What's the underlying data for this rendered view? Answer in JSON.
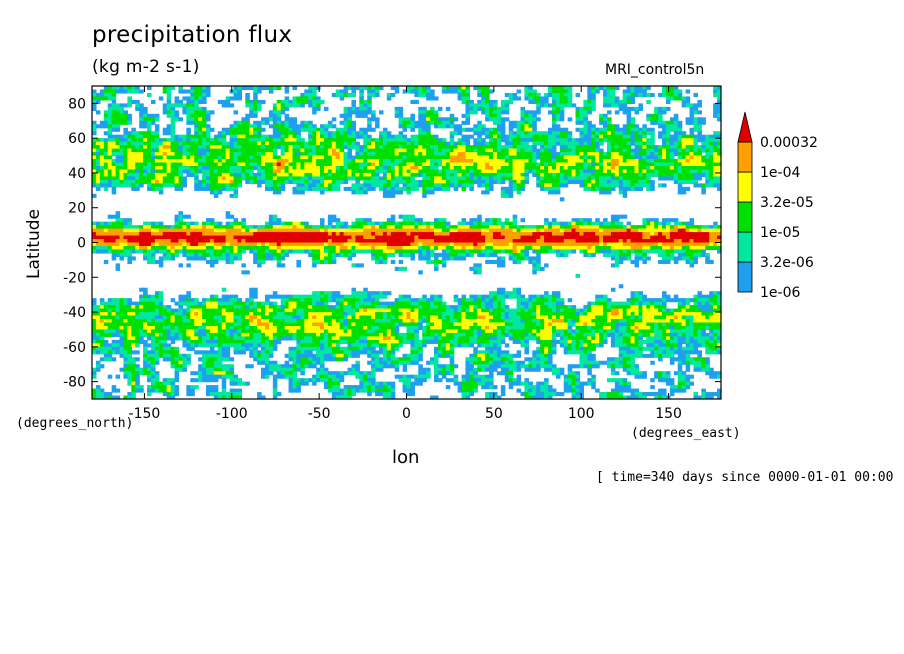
{
  "chart_data": {
    "type": "heatmap",
    "title": "precipitation flux",
    "units": "(kg m-2 s-1)",
    "dataset": "MRI_control5n",
    "xlabel": "lon",
    "ylabel": "Latitude",
    "x_units": "(degrees_east)",
    "y_units": "(degrees_north)",
    "xlim": [
      -180,
      180
    ],
    "ylim": [
      -90,
      90
    ],
    "x_ticks": [
      -150,
      -100,
      -50,
      0,
      50,
      100,
      150
    ],
    "x_tick_labels": [
      "-150",
      "-100",
      "-50",
      "0",
      "50",
      "100",
      "150"
    ],
    "y_ticks": [
      80,
      60,
      40,
      20,
      0,
      -20,
      -40,
      -60,
      -80
    ],
    "y_tick_labels": [
      "80",
      "60",
      "40",
      "20",
      "0",
      "-20",
      "-40",
      "-60",
      "-80"
    ],
    "footer": "[ time=340 days since 0000-01-01 00:00",
    "colorbar": {
      "levels": [
        1e-06,
        3.2e-06,
        1e-05,
        3.2e-05,
        0.0001,
        0.00032
      ],
      "labels": [
        "1e-06",
        "3.2e-06",
        "1e-05",
        "3.2e-05",
        "1e-04",
        "0.00032"
      ],
      "colors": [
        "#ffffff",
        "#1e9ff0",
        "#00e8a0",
        "#00e000",
        "#ffff00",
        "#ffa000",
        "#e00000"
      ],
      "extend": "max"
    }
  }
}
